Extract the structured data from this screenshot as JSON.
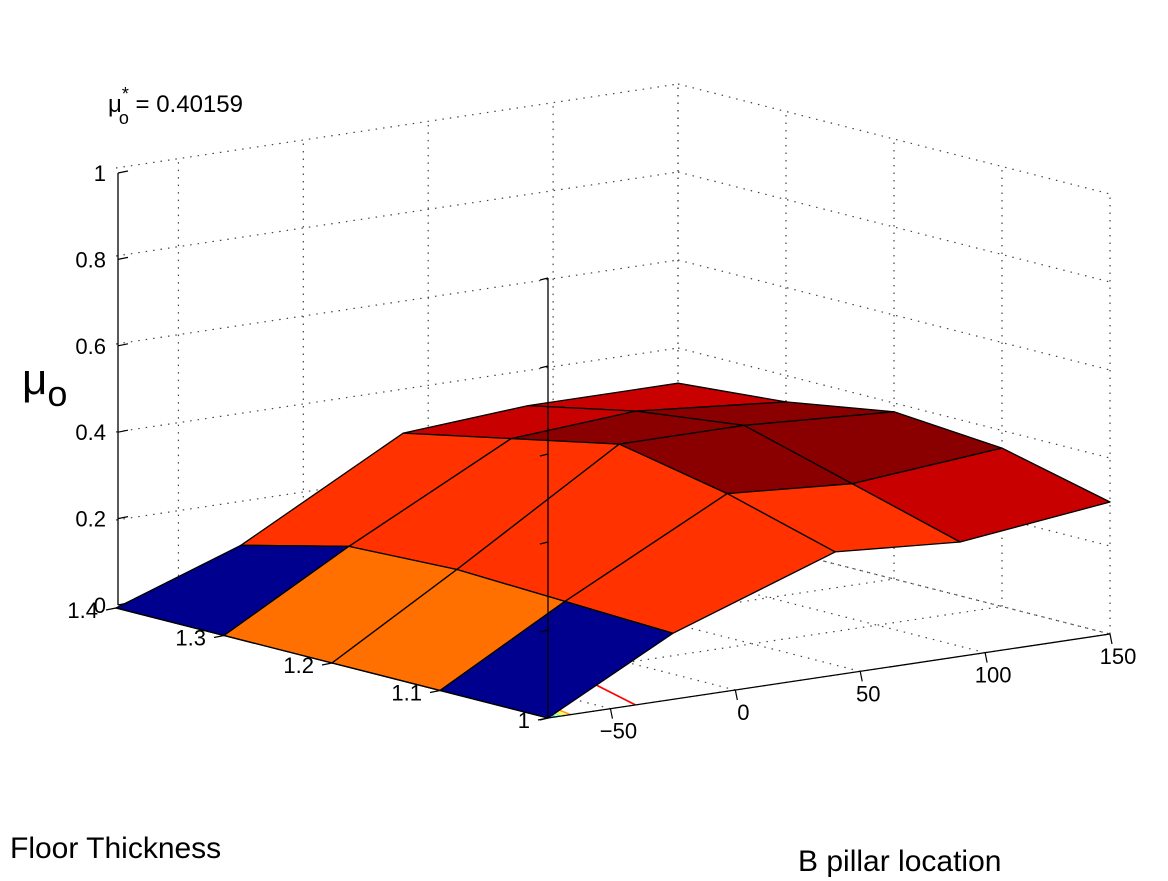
{
  "chart_data": {
    "type": "surface",
    "annotation": {
      "symbol": "μ",
      "subscript": "o",
      "superscript": "*",
      "text": " = 0.40159"
    },
    "zlabel": {
      "symbol": "μ",
      "subscript": "o"
    },
    "xlabel": "Floor Thickness",
    "ylabel": "B pillar location",
    "xlim": [
      1,
      1.4
    ],
    "ylim": [
      -75,
      150
    ],
    "zlim": [
      0,
      1
    ],
    "x_ticks": [
      "1",
      "1.1",
      "1.2",
      "1.3",
      "1.4"
    ],
    "y_ticks": [
      "−50",
      "0",
      "50",
      "100",
      "150"
    ],
    "z_ticks": [
      "0",
      "0.2",
      "0.4",
      "0.6",
      "0.8",
      "1"
    ],
    "grid": true,
    "surface": {
      "x": [
        1.0,
        1.1,
        1.2,
        1.3,
        1.4
      ],
      "y": [
        -75,
        -25,
        40,
        90,
        150
      ],
      "z": [
        [
          0.0,
          0.15,
          0.28,
          0.26,
          0.3
        ],
        [
          0.0,
          0.16,
          0.35,
          0.33,
          0.36
        ],
        [
          0.0,
          0.17,
          0.4,
          0.4,
          0.38
        ],
        [
          0.0,
          0.16,
          0.35,
          0.37,
          0.34
        ],
        [
          0.0,
          0.1,
          0.3,
          0.32,
          0.32
        ]
      ]
    },
    "colors": {
      "low": "#00008f",
      "orange": "#ff7000",
      "red_orange": "#ff3200",
      "red": "#c80000",
      "dark_red": "#8a0000"
    },
    "contour_colors": [
      "#0044ff",
      "#00bfff",
      "#7fff7f",
      "#ffff00",
      "#ff9f00",
      "#ff0000",
      "#8f0000"
    ]
  }
}
